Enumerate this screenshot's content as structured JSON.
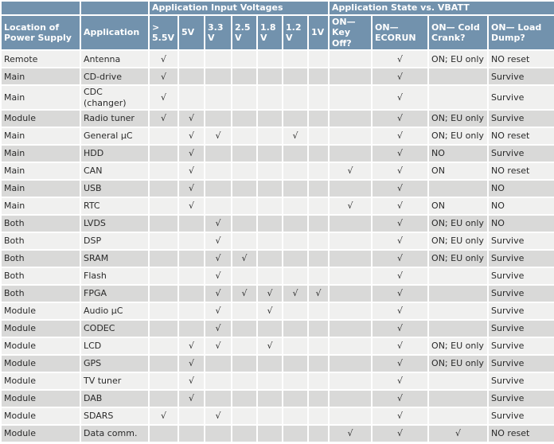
{
  "colors": {
    "header_bg": "#7292ad",
    "header_text": "#ffffff",
    "row_light": "#f0f0ef",
    "row_dark": "#d9d9d8",
    "border": "#ffffff",
    "body_text": "#2a2a2a"
  },
  "table": {
    "check_glyph": "√",
    "group_headers": [
      {
        "label": "",
        "colspan": 1
      },
      {
        "label": "",
        "colspan": 1
      },
      {
        "label": "Application Input Voltages",
        "colspan": 7
      },
      {
        "label": "Application State vs. VBATT",
        "colspan": 4
      }
    ],
    "columns": [
      "Location of Power Supply",
      "Application",
      "> 5.5V",
      "5V",
      "3.3V",
      "2.5V",
      "1.8V",
      "1.2V",
      "1V",
      "ON— Key Off?",
      "ON— ECORUN",
      "ON— Cold Crank?",
      "ON— Load Dump?"
    ],
    "rows": [
      {
        "location": "Remote",
        "application": "Antenna",
        "volts": [
          1,
          0,
          0,
          0,
          0,
          0,
          0
        ],
        "key_off": 0,
        "ecorun": 1,
        "cold_crank": "ON; EU only",
        "cold_crank_check": 0,
        "load_dump": "NO reset"
      },
      {
        "location": "Main",
        "application": "CD-drive",
        "volts": [
          1,
          0,
          0,
          0,
          0,
          0,
          0
        ],
        "key_off": 0,
        "ecorun": 1,
        "cold_crank": "",
        "cold_crank_check": 0,
        "load_dump": "Survive"
      },
      {
        "location": "Main",
        "application": "CDC (changer)",
        "volts": [
          1,
          0,
          0,
          0,
          0,
          0,
          0
        ],
        "key_off": 0,
        "ecorun": 1,
        "cold_crank": "",
        "cold_crank_check": 0,
        "load_dump": "Survive"
      },
      {
        "location": "Module",
        "application": "Radio tuner",
        "volts": [
          1,
          1,
          0,
          0,
          0,
          0,
          0
        ],
        "key_off": 0,
        "ecorun": 1,
        "cold_crank": "ON; EU only",
        "cold_crank_check": 0,
        "load_dump": "Survive"
      },
      {
        "location": "Main",
        "application": "General µC",
        "volts": [
          0,
          1,
          1,
          0,
          0,
          1,
          0
        ],
        "key_off": 0,
        "ecorun": 1,
        "cold_crank": "ON; EU only",
        "cold_crank_check": 0,
        "load_dump": "NO reset"
      },
      {
        "location": "Main",
        "application": "HDD",
        "volts": [
          0,
          1,
          0,
          0,
          0,
          0,
          0
        ],
        "key_off": 0,
        "ecorun": 1,
        "cold_crank": "NO",
        "cold_crank_check": 0,
        "load_dump": "Survive"
      },
      {
        "location": "Main",
        "application": "CAN",
        "volts": [
          0,
          1,
          0,
          0,
          0,
          0,
          0
        ],
        "key_off": 1,
        "ecorun": 1,
        "cold_crank": "ON",
        "cold_crank_check": 0,
        "load_dump": "NO reset"
      },
      {
        "location": "Main",
        "application": "USB",
        "volts": [
          0,
          1,
          0,
          0,
          0,
          0,
          0
        ],
        "key_off": 0,
        "ecorun": 1,
        "cold_crank": "",
        "cold_crank_check": 0,
        "load_dump": "NO"
      },
      {
        "location": "Main",
        "application": "RTC",
        "volts": [
          0,
          1,
          0,
          0,
          0,
          0,
          0
        ],
        "key_off": 1,
        "ecorun": 1,
        "cold_crank": "ON",
        "cold_crank_check": 0,
        "load_dump": "NO"
      },
      {
        "location": "Both",
        "application": "LVDS",
        "volts": [
          0,
          0,
          1,
          0,
          0,
          0,
          0
        ],
        "key_off": 0,
        "ecorun": 1,
        "cold_crank": "ON; EU only",
        "cold_crank_check": 0,
        "load_dump": "NO"
      },
      {
        "location": "Both",
        "application": "DSP",
        "volts": [
          0,
          0,
          1,
          0,
          0,
          0,
          0
        ],
        "key_off": 0,
        "ecorun": 1,
        "cold_crank": "ON; EU only",
        "cold_crank_check": 0,
        "load_dump": "Survive"
      },
      {
        "location": "Both",
        "application": "SRAM",
        "volts": [
          0,
          0,
          1,
          1,
          0,
          0,
          0
        ],
        "key_off": 0,
        "ecorun": 1,
        "cold_crank": "ON; EU only",
        "cold_crank_check": 0,
        "load_dump": "Survive"
      },
      {
        "location": "Both",
        "application": "Flash",
        "volts": [
          0,
          0,
          1,
          0,
          0,
          0,
          0
        ],
        "key_off": 0,
        "ecorun": 1,
        "cold_crank": "",
        "cold_crank_check": 0,
        "load_dump": "Survive"
      },
      {
        "location": "Both",
        "application": "FPGA",
        "volts": [
          0,
          0,
          1,
          1,
          1,
          1,
          1
        ],
        "key_off": 0,
        "ecorun": 1,
        "cold_crank": "",
        "cold_crank_check": 0,
        "load_dump": "Survive"
      },
      {
        "location": "Module",
        "application": "Audio µC",
        "volts": [
          0,
          0,
          1,
          0,
          1,
          0,
          0
        ],
        "key_off": 0,
        "ecorun": 1,
        "cold_crank": "",
        "cold_crank_check": 0,
        "load_dump": "Survive"
      },
      {
        "location": "Module",
        "application": "CODEC",
        "volts": [
          0,
          0,
          1,
          0,
          0,
          0,
          0
        ],
        "key_off": 0,
        "ecorun": 1,
        "cold_crank": "",
        "cold_crank_check": 0,
        "load_dump": "Survive"
      },
      {
        "location": "Module",
        "application": "LCD",
        "volts": [
          0,
          1,
          1,
          0,
          1,
          0,
          0
        ],
        "key_off": 0,
        "ecorun": 1,
        "cold_crank": "ON; EU only",
        "cold_crank_check": 0,
        "load_dump": "Survive"
      },
      {
        "location": "Module",
        "application": "GPS",
        "volts": [
          0,
          1,
          0,
          0,
          0,
          0,
          0
        ],
        "key_off": 0,
        "ecorun": 1,
        "cold_crank": "ON; EU only",
        "cold_crank_check": 0,
        "load_dump": "Survive"
      },
      {
        "location": "Module",
        "application": "TV tuner",
        "volts": [
          0,
          1,
          0,
          0,
          0,
          0,
          0
        ],
        "key_off": 0,
        "ecorun": 1,
        "cold_crank": "",
        "cold_crank_check": 0,
        "load_dump": "Survive"
      },
      {
        "location": "Module",
        "application": "DAB",
        "volts": [
          0,
          1,
          0,
          0,
          0,
          0,
          0
        ],
        "key_off": 0,
        "ecorun": 1,
        "cold_crank": "",
        "cold_crank_check": 0,
        "load_dump": "Survive"
      },
      {
        "location": "Module",
        "application": "SDARS",
        "volts": [
          1,
          0,
          1,
          0,
          0,
          0,
          0
        ],
        "key_off": 0,
        "ecorun": 1,
        "cold_crank": "",
        "cold_crank_check": 0,
        "load_dump": "Survive"
      },
      {
        "location": "Module",
        "application": "Data comm.",
        "volts": [
          0,
          0,
          0,
          0,
          0,
          0,
          0
        ],
        "key_off": 1,
        "ecorun": 1,
        "cold_crank": "",
        "cold_crank_check": 1,
        "load_dump": "NO reset"
      }
    ]
  }
}
